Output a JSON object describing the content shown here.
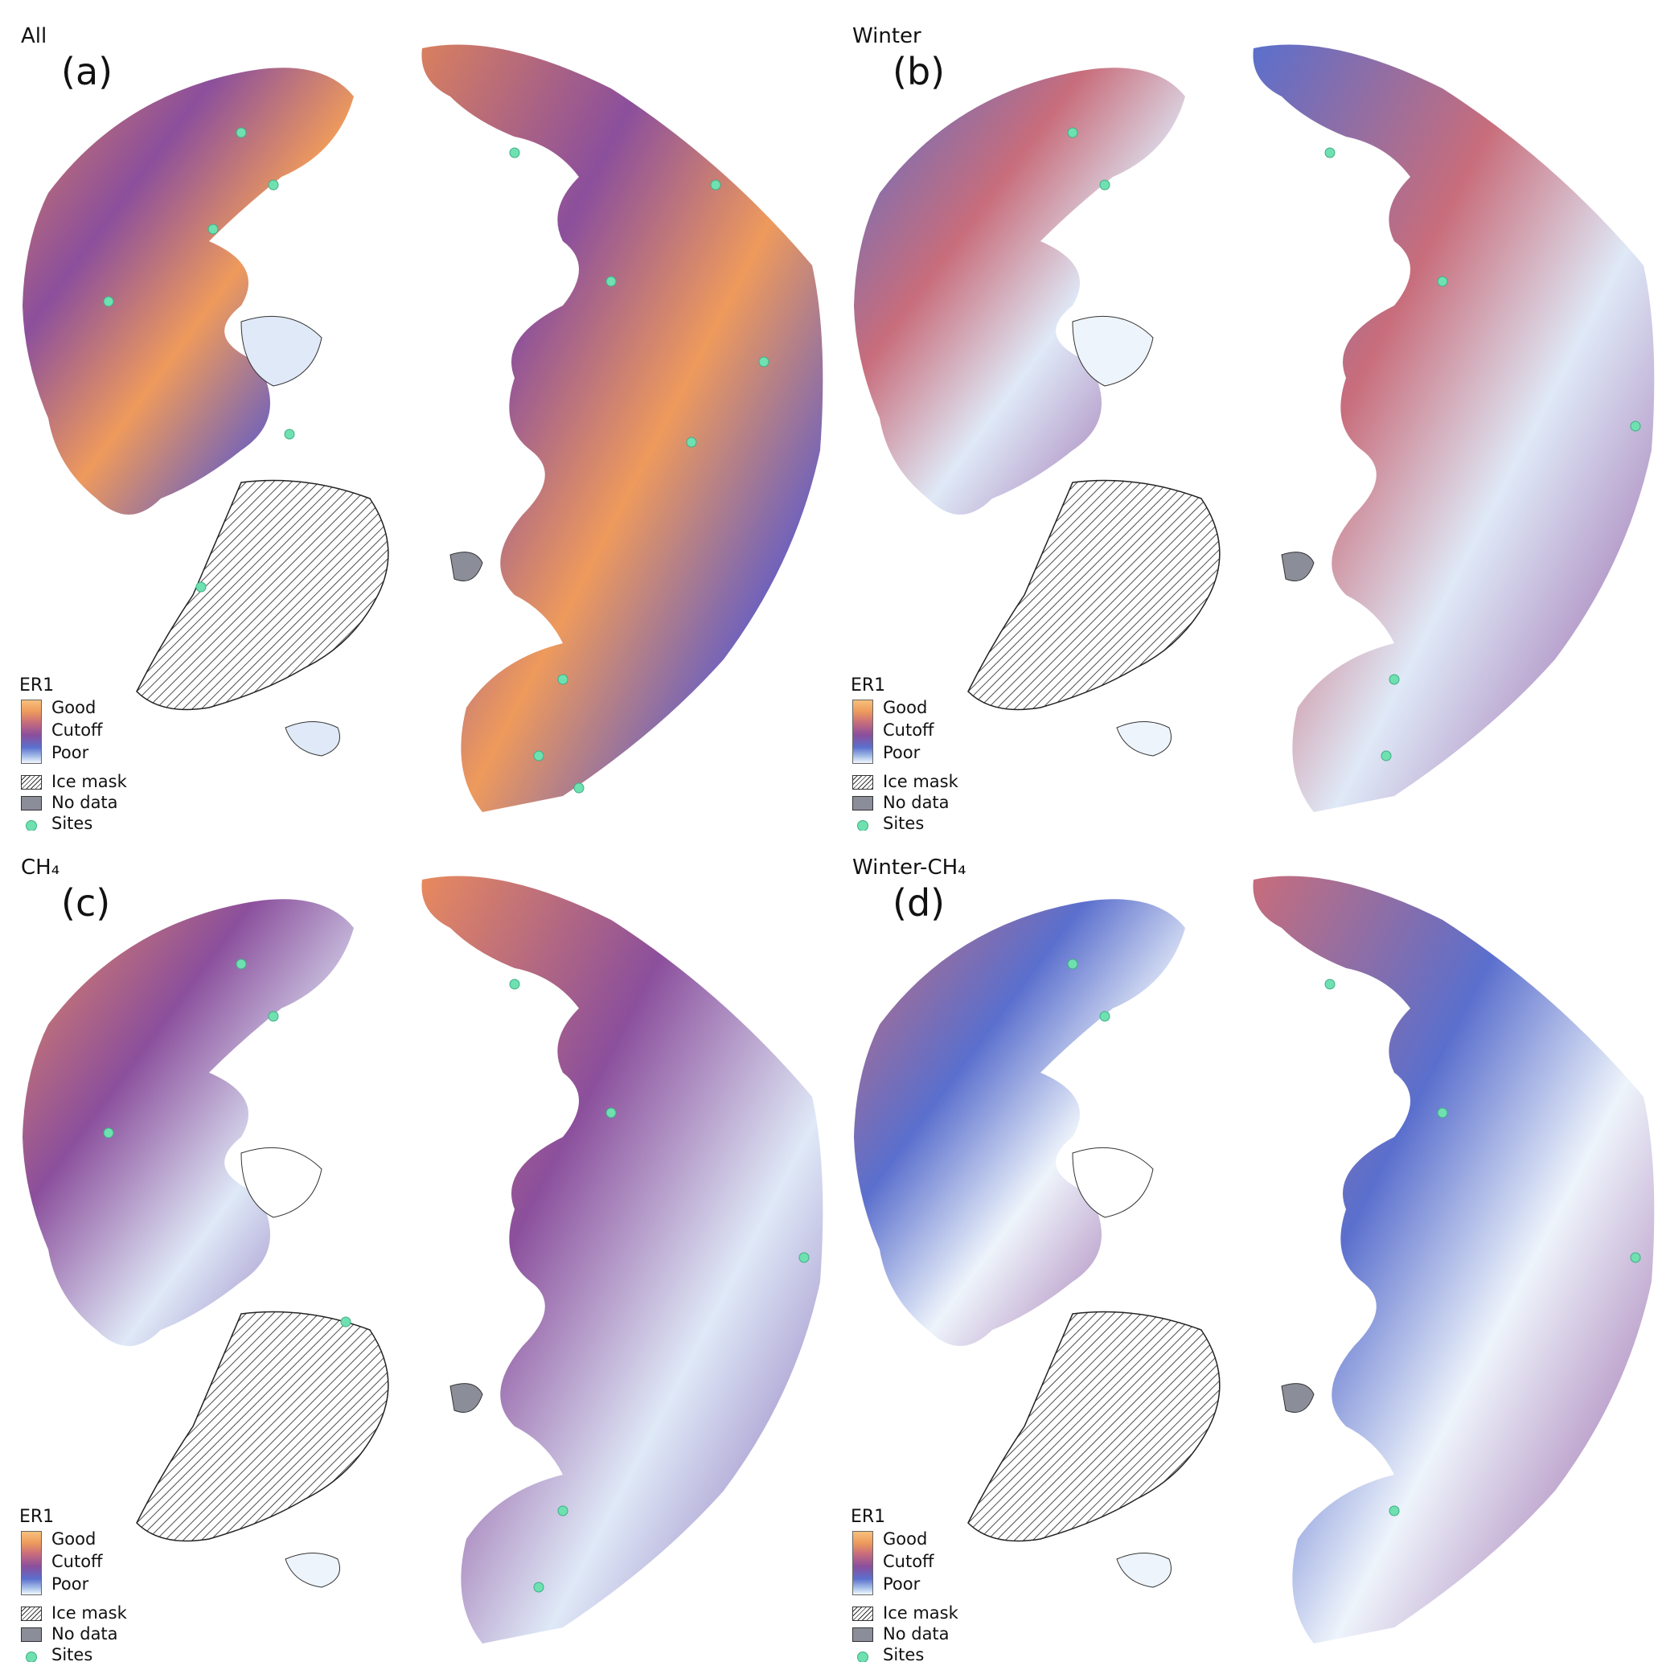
{
  "panels": [
    {
      "title": "All",
      "letter": "(a)",
      "fill": "url(#g-all)"
    },
    {
      "title": "Winter",
      "letter": "(b)",
      "fill": "url(#g-winter)"
    },
    {
      "title": "CH₄",
      "letter": "(c)",
      "fill": "url(#g-ch4)"
    },
    {
      "title": "Winter-CH₄",
      "letter": "(d)",
      "fill": "url(#g-wch4)"
    }
  ],
  "legend": {
    "title": "ER1",
    "good": "Good",
    "cutoff": "Cutoff",
    "poor": "Poor",
    "ice_mask": "Ice mask",
    "no_data": "No data",
    "sites": "Sites"
  },
  "colors": {
    "good": "#f6c07b",
    "cutoff": "#8b4f9c",
    "poor": "#f3f8fd",
    "site": "#6fe0b0",
    "no_data": "#8b8d99"
  }
}
